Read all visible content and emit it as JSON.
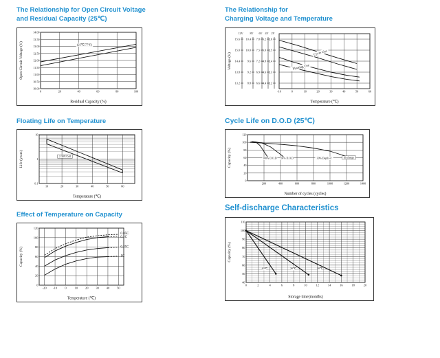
{
  "page": {
    "background": "#ffffff",
    "title_color": "#2191d0",
    "line_color": "#111111",
    "grid_color": "#3a3a3a"
  },
  "chart_data": [
    {
      "id": "ocv-vs-residual-capacity",
      "type": "line",
      "title_lines": [
        "The Relationship for Open Circuit Voltage",
        "and Residual Capacity (25℃)"
      ],
      "xlabel": "Residual Capacity (%)",
      "ylabel": "Open Circuit Voltage (V)",
      "xlim": [
        0,
        100
      ],
      "ylim": [
        10,
        14
      ],
      "xticks": [
        0,
        20,
        40,
        60,
        80,
        100
      ],
      "yticks": [
        {
          "v": 10,
          "label": "10.00"
        },
        {
          "v": 10.5,
          "label": "10.50"
        },
        {
          "v": 11,
          "label": "11.00"
        },
        {
          "v": 11.5,
          "label": "11.50"
        },
        {
          "v": 12,
          "label": "12.00"
        },
        {
          "v": 12.5,
          "label": "12.50"
        },
        {
          "v": 13,
          "label": "13.00"
        },
        {
          "v": 13.5,
          "label": "13.50"
        },
        {
          "v": 14,
          "label": "14.00"
        }
      ],
      "series": [
        {
          "name": "ocv-upper-line",
          "points": [
            [
              0,
              11.9
            ],
            [
              100,
              13.15
            ]
          ]
        },
        {
          "name": "ocv-lower-line",
          "points": [
            [
              0,
              11.63
            ],
            [
              100,
              12.93
            ]
          ]
        }
      ],
      "annotations": [
        {
          "x": 46,
          "y": 13.05,
          "text": "(25℃/77°F)",
          "size": 4.4,
          "bg": true
        }
      ],
      "layout": {
        "margin": {
          "l": 34,
          "r": 8,
          "t": 6,
          "b": 24
        },
        "tickFont": 4.2
      }
    },
    {
      "id": "charging-voltage-vs-temperature",
      "type": "line",
      "title_lines": [
        "The Relationship for",
        "Charging Voltage and Temperature"
      ],
      "xlabel": "Temperature (℃)",
      "ylabel": "Voltage (V)",
      "xlim": [
        -10,
        60
      ],
      "ylim": [
        2.15,
        2.65
      ],
      "xticks": [
        -10,
        0,
        10,
        20,
        30,
        40,
        50,
        60
      ],
      "yticks": [
        {
          "v": 2.6,
          "label": ""
        },
        {
          "v": 2.5,
          "label": ""
        },
        {
          "v": 2.4,
          "label": ""
        },
        {
          "v": 2.3,
          "label": ""
        },
        {
          "v": 2.2,
          "label": ""
        }
      ],
      "scales": {
        "headers": [
          "12V",
          "8V",
          "6V",
          "4V",
          "2V"
        ],
        "rows": [
          [
            "15.6",
            "10.4",
            "7.8",
            "5.2",
            "2.6"
          ],
          [
            "15.0",
            "10.0",
            "7.5",
            "5.0",
            "2.5"
          ],
          [
            "14.4",
            "9.6",
            "7.2",
            "4.8",
            "2.4"
          ],
          [
            "13.8",
            "9.2",
            "6.9",
            "4.6",
            "2.3"
          ],
          [
            "13.2",
            "8.8",
            "6.6",
            "4.4",
            "2.2"
          ]
        ],
        "row_values": [
          2.6,
          2.5,
          2.4,
          2.3,
          2.2
        ],
        "colx": [
          22,
          38,
          51,
          60,
          69
        ]
      },
      "series": [
        {
          "name": "cycle-use-upper",
          "points": [
            [
              -10,
              2.59
            ],
            [
              5,
              2.54
            ],
            [
              20,
              2.485
            ],
            [
              35,
              2.43
            ],
            [
              50,
              2.378
            ]
          ]
        },
        {
          "name": "cycle-use-lower",
          "points": [
            [
              -10,
              2.53
            ],
            [
              5,
              2.48
            ],
            [
              20,
              2.43
            ],
            [
              35,
              2.375
            ],
            [
              50,
              2.325
            ]
          ]
        },
        {
          "name": "floating-use-upper",
          "points": [
            [
              -10,
              2.435
            ],
            [
              0,
              2.395
            ],
            [
              15,
              2.345
            ],
            [
              30,
              2.3
            ],
            [
              42,
              2.272
            ],
            [
              52,
              2.255
            ]
          ]
        },
        {
          "name": "floating-use-lower",
          "points": [
            [
              -10,
              2.37
            ],
            [
              0,
              2.34
            ],
            [
              15,
              2.3
            ],
            [
              30,
              2.26
            ],
            [
              42,
              2.235
            ],
            [
              52,
              2.22
            ]
          ]
        }
      ],
      "annotations": [
        {
          "x": 22,
          "y": 2.468,
          "text": "Cycle Use",
          "size": 4.8,
          "rotate": -16,
          "bg": true
        },
        {
          "x": 7,
          "y": 2.338,
          "text": "Floating Use",
          "size": 4.8,
          "rotate": -13,
          "bg": true
        }
      ],
      "layout": {
        "margin": {
          "l": 78,
          "r": 7,
          "t": 8,
          "b": 24
        },
        "tickFont": 4.2
      }
    },
    {
      "id": "floating-life-vs-temperature",
      "type": "line",
      "title_lines": [
        "Floating Life on Temperature"
      ],
      "xlabel": "Temperature (℃)",
      "ylabel": "Life (years)",
      "xlim": [
        5,
        68
      ],
      "ylim": [
        0.1,
        10
      ],
      "yscale": "log",
      "xticks": [
        10,
        20,
        30,
        40,
        50,
        60
      ],
      "yticks": [
        {
          "v": 0.1,
          "label": "0.1"
        },
        {
          "v": 1,
          "label": "1"
        },
        {
          "v": 10,
          "label": "10"
        }
      ],
      "yminor": [
        0.2,
        0.3,
        0.4,
        0.5,
        0.6,
        0.7,
        0.8,
        0.9,
        2,
        3,
        4,
        5,
        6,
        7,
        8,
        9
      ],
      "series": [
        {
          "name": "life-band-upper",
          "points": [
            [
              10,
              6.6
            ],
            [
              60,
              0.36
            ]
          ]
        },
        {
          "name": "life-band-lower",
          "points": [
            [
              10,
              4.2
            ],
            [
              60,
              0.27
            ]
          ]
        },
        {
          "name": "life-band-cap-left",
          "points": [
            [
              10,
              6.6
            ],
            [
              10,
              4.2
            ]
          ]
        },
        {
          "name": "life-band-cap-right",
          "points": [
            [
              60,
              0.36
            ],
            [
              60,
              0.27
            ]
          ]
        }
      ],
      "annotations": [
        {
          "x": 22,
          "y": 1.18,
          "text": "2.30V/Cell",
          "size": 3.9,
          "bg": true,
          "boxed": true
        }
      ],
      "layout": {
        "margin": {
          "l": 32,
          "r": 10,
          "t": 7,
          "b": 24
        },
        "tickFont": 4.2
      }
    },
    {
      "id": "cycle-life-vs-dod",
      "type": "line",
      "title_lines": [
        "Cycle Life on D.O.D (25℃)"
      ],
      "xlabel": "Number of cycles (cycles)",
      "ylabel": "Capacity (%)",
      "xlim": [
        0,
        1400
      ],
      "ylim": [
        0,
        120
      ],
      "xticks": [
        200,
        400,
        600,
        800,
        1000,
        1200,
        1400
      ],
      "yticks": [
        0,
        20,
        40,
        60,
        80,
        100,
        120
      ],
      "series": [
        {
          "name": "dod-100-percent",
          "points": [
            [
              30,
              100
            ],
            [
              60,
              102
            ],
            [
              100,
              101
            ],
            [
              150,
              92
            ],
            [
              200,
              76
            ],
            [
              250,
              60
            ]
          ]
        },
        {
          "name": "dod-50-percent",
          "points": [
            [
              30,
              100
            ],
            [
              100,
              101
            ],
            [
              180,
              98
            ],
            [
              280,
              88
            ],
            [
              380,
              72
            ],
            [
              450,
              60
            ]
          ]
        },
        {
          "name": "dod-30-percent",
          "points": [
            [
              30,
              100
            ],
            [
              200,
              98
            ],
            [
              400,
              95
            ],
            [
              600,
              91
            ],
            [
              800,
              85
            ],
            [
              1000,
              77
            ],
            [
              1250,
              60
            ]
          ]
        }
      ],
      "annotations": [
        {
          "x": 270,
          "y": 56,
          "text": "100% D.O.D",
          "size": 3.9,
          "bg": true
        },
        {
          "x": 480,
          "y": 56,
          "text": "50% D.O.D",
          "size": 3.9,
          "bg": true
        },
        {
          "x": 930,
          "y": 56,
          "text": "30% Depth of",
          "size": 3.9,
          "bg": true
        },
        {
          "x": 1230,
          "y": 58,
          "text": "discharge",
          "size": 3.9,
          "bg": true,
          "boxed": true
        }
      ],
      "layout": {
        "margin": {
          "l": 32,
          "r": 9,
          "t": 7,
          "b": 24
        },
        "tickFont": 4.2
      }
    },
    {
      "id": "temperature-effect-on-capacity",
      "type": "line",
      "title_lines": [
        "Effect of Temperature on Capacity"
      ],
      "xlabel": "Temperature (℃)",
      "ylabel": "Capacity (%)",
      "xlim": [
        -25,
        55
      ],
      "ylim": [
        0,
        120
      ],
      "xticks": [
        -20,
        -10,
        0,
        10,
        20,
        30,
        40,
        50
      ],
      "yticks": [
        0,
        20,
        40,
        60,
        80,
        100,
        120
      ],
      "series": [
        {
          "name": "rate-0.05C",
          "dash": true,
          "points": [
            [
              -20,
              63
            ],
            [
              -10,
              77
            ],
            [
              0,
              87
            ],
            [
              10,
              95
            ],
            [
              20,
              101
            ],
            [
              30,
              104
            ],
            [
              40,
              106
            ],
            [
              50,
              107
            ]
          ]
        },
        {
          "name": "rate-0.1C",
          "dashFrom": 40,
          "points": [
            [
              -20,
              58
            ],
            [
              -10,
              72
            ],
            [
              0,
              82
            ],
            [
              10,
              90
            ],
            [
              20,
              96
            ],
            [
              30,
              100
            ],
            [
              40,
              102
            ],
            [
              50,
              103
            ]
          ]
        },
        {
          "name": "rate-0.25C",
          "dashFrom": 40,
          "points": [
            [
              -20,
              40
            ],
            [
              -10,
              53
            ],
            [
              0,
              62
            ],
            [
              10,
              69
            ],
            [
              20,
              74
            ],
            [
              30,
              77
            ],
            [
              40,
              79
            ],
            [
              50,
              80
            ]
          ]
        },
        {
          "name": "rate-1C",
          "dashFrom": 40,
          "points": [
            [
              -20,
              21
            ],
            [
              -10,
              34
            ],
            [
              0,
              44
            ],
            [
              10,
              51
            ],
            [
              20,
              56
            ],
            [
              30,
              59
            ],
            [
              40,
              60
            ],
            [
              50,
              61
            ]
          ]
        }
      ],
      "annotations": [
        {
          "x": 52,
          "y": 107,
          "text": "0.05C",
          "size": 5,
          "anchor": "start"
        },
        {
          "x": 52,
          "y": 100,
          "text": "0.1C",
          "size": 5,
          "anchor": "start"
        },
        {
          "x": 52,
          "y": 79,
          "text": "0.25C",
          "size": 5,
          "anchor": "start"
        },
        {
          "x": 52,
          "y": 60,
          "text": "1C",
          "size": 5,
          "anchor": "start"
        }
      ],
      "layout": {
        "margin": {
          "l": 32,
          "r": 26,
          "t": 7,
          "b": 24
        },
        "tickFont": 4.5
      }
    },
    {
      "id": "self-discharge-characteristics",
      "type": "line",
      "title_lines": [
        "Self-discharge Characteristics"
      ],
      "xlabel": "Storage time(months)",
      "ylabel": "Capacity (%)",
      "xlim": [
        0,
        20
      ],
      "ylim": [
        40,
        110
      ],
      "xticks": [
        0,
        2,
        4,
        6,
        8,
        10,
        12,
        14,
        16,
        18,
        20
      ],
      "xminor": [
        1,
        3,
        5,
        7,
        9,
        11,
        13,
        15,
        17,
        19
      ],
      "yticks": [
        40,
        50,
        60,
        70,
        80,
        90,
        100,
        110
      ],
      "yminor": [
        42.5,
        45,
        47.5,
        52.5,
        55,
        57.5,
        62.5,
        65,
        67.5,
        72.5,
        75,
        77.5,
        82.5,
        85,
        87.5,
        92.5,
        95,
        97.5,
        102.5,
        105,
        107.5
      ],
      "series": [
        {
          "name": "storage-40C",
          "width": 1.15,
          "dots": "ends",
          "points": [
            [
              0,
              100
            ],
            [
              5,
              50
            ]
          ]
        },
        {
          "name": "storage-30C",
          "width": 1.15,
          "dots": "ends",
          "points": [
            [
              0,
              100
            ],
            [
              10.5,
              49
            ]
          ]
        },
        {
          "name": "storage-20C",
          "width": 1.15,
          "dots": "ends",
          "points": [
            [
              0,
              100
            ],
            [
              16,
              48
            ]
          ]
        }
      ],
      "annotations": [
        {
          "x": 3.1,
          "y": 55,
          "text": "40℃",
          "size": 3.9,
          "bg": true
        },
        {
          "x": 7.9,
          "y": 55,
          "text": "30℃",
          "size": 3.9,
          "bg": true
        },
        {
          "x": 12.4,
          "y": 55,
          "text": "20℃",
          "size": 3.9,
          "bg": true
        }
      ],
      "layout": {
        "margin": {
          "l": 30,
          "r": 12,
          "t": 6,
          "b": 26
        },
        "tickFont": 4.4
      }
    }
  ]
}
